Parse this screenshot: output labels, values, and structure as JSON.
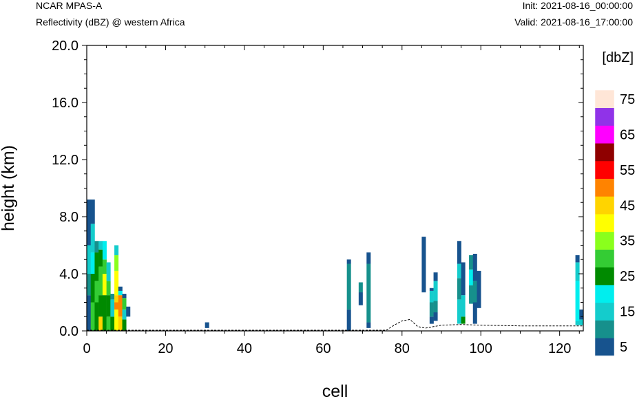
{
  "header": {
    "model": "NCAR MPAS-A",
    "field": "Reflectivity (dBZ) @ western Africa",
    "init": "Init: 2021-08-16_00:00:00",
    "valid": "Valid: 2021-08-16_17:00:00"
  },
  "chart_data": {
    "type": "heatmap",
    "title": "Reflectivity (dBZ) @ western Africa",
    "xlabel": "cell",
    "ylabel": "height (km)",
    "xlim": [
      0,
      126
    ],
    "ylim": [
      0,
      20
    ],
    "x_ticks": [
      "0",
      "20",
      "40",
      "60",
      "80",
      "100",
      "120"
    ],
    "y_ticks": [
      "0.0",
      "4.0",
      "8.0",
      "12.0",
      "16.0",
      "20.0"
    ],
    "colorbar": {
      "units": "[dbZ]",
      "levels": [
        5,
        10,
        15,
        20,
        25,
        30,
        35,
        40,
        45,
        50,
        55,
        60,
        65,
        70,
        75
      ],
      "labels": [
        "5",
        "15",
        "25",
        "35",
        "45",
        "55",
        "65",
        "75"
      ],
      "colors": [
        "#17538e",
        "#16908c",
        "#14cccc",
        "#00eeee",
        "#008a00",
        "#34cc34",
        "#8aff1c",
        "#ffff00",
        "#ffd400",
        "#ff8300",
        "#ff0000",
        "#8f0000",
        "#ff00ff",
        "#9033e8",
        "#ffe6d7"
      ]
    },
    "columns": [
      {
        "x": 0.5,
        "cells": [
          [
            0,
            2.5,
            0
          ],
          [
            2.5,
            4,
            1
          ],
          [
            4,
            6,
            2
          ],
          [
            6,
            9.2,
            0
          ]
        ]
      },
      {
        "x": 1.5,
        "cells": [
          [
            0,
            2,
            5
          ],
          [
            2,
            4,
            4
          ],
          [
            4,
            5.5,
            3
          ],
          [
            5.5,
            7.5,
            2
          ],
          [
            7.5,
            9.2,
            0
          ]
        ]
      },
      {
        "x": 2.5,
        "cells": [
          [
            0,
            2,
            4
          ],
          [
            2,
            3.5,
            5
          ],
          [
            3.5,
            5.5,
            4
          ],
          [
            5.5,
            6.3,
            1
          ]
        ]
      },
      {
        "x": 3.5,
        "cells": [
          [
            0,
            1,
            8
          ],
          [
            1,
            2.5,
            4
          ],
          [
            2.5,
            4.5,
            5
          ],
          [
            4.5,
            5.7,
            4
          ],
          [
            5.7,
            6.3,
            2
          ]
        ]
      },
      {
        "x": 4.5,
        "cells": [
          [
            0,
            2.5,
            4
          ],
          [
            2.5,
            4,
            7
          ],
          [
            4,
            5,
            5
          ],
          [
            5,
            6.3,
            3
          ]
        ]
      },
      {
        "x": 5.5,
        "cells": [
          [
            0,
            1,
            5
          ],
          [
            1,
            2.5,
            4
          ],
          [
            2.5,
            3.5,
            5
          ],
          [
            3.5,
            4.8,
            2
          ]
        ]
      },
      {
        "x": 6.5,
        "cells": [
          [
            0,
            1,
            4
          ],
          [
            1,
            2.2,
            2
          ],
          [
            2.2,
            2.6,
            1
          ]
        ]
      },
      {
        "x": 7.5,
        "cells": [
          [
            0,
            1.5,
            7
          ],
          [
            1.5,
            2,
            9
          ],
          [
            2,
            2.5,
            8
          ],
          [
            2.5,
            4.2,
            7
          ],
          [
            4.2,
            5.3,
            6
          ],
          [
            5.3,
            6,
            2
          ]
        ]
      },
      {
        "x": 8.5,
        "cells": [
          [
            0,
            1,
            8
          ],
          [
            1,
            2.5,
            9
          ],
          [
            2.5,
            2.8,
            3
          ],
          [
            2.8,
            3.1,
            0
          ]
        ]
      },
      {
        "x": 9.5,
        "cells": [
          [
            0,
            0.8,
            4
          ],
          [
            0.8,
            1.5,
            2
          ],
          [
            1.5,
            2.3,
            5
          ],
          [
            2.3,
            2.6,
            0
          ]
        ]
      },
      {
        "x": 10.5,
        "cells": [
          [
            1,
            1.7,
            0
          ]
        ]
      },
      {
        "x": 30.5,
        "cells": [
          [
            0.2,
            0.6,
            0
          ]
        ]
      },
      {
        "x": 66.5,
        "cells": [
          [
            0,
            1.5,
            0
          ],
          [
            1.5,
            4.7,
            1
          ],
          [
            4.7,
            5,
            0
          ]
        ]
      },
      {
        "x": 69.5,
        "cells": [
          [
            1.8,
            2.7,
            0
          ],
          [
            2.7,
            3.4,
            1
          ]
        ]
      },
      {
        "x": 71.5,
        "cells": [
          [
            0.2,
            0.6,
            0
          ],
          [
            0.6,
            4.7,
            1
          ],
          [
            4.7,
            5.5,
            0
          ]
        ]
      },
      {
        "x": 85.5,
        "cells": [
          [
            2.7,
            6.6,
            0
          ]
        ]
      },
      {
        "x": 87.5,
        "cells": [
          [
            0.5,
            1,
            0
          ],
          [
            1,
            2,
            1
          ],
          [
            2,
            2.8,
            2
          ],
          [
            2.8,
            3,
            0
          ]
        ]
      },
      {
        "x": 88.5,
        "cells": [
          [
            0.7,
            1.3,
            0
          ],
          [
            1.3,
            2.1,
            1
          ],
          [
            2.1,
            3.5,
            2
          ],
          [
            3.5,
            4.1,
            0
          ]
        ]
      },
      {
        "x": 94.5,
        "cells": [
          [
            0.5,
            2.2,
            2
          ],
          [
            2.2,
            3.7,
            1
          ],
          [
            3.7,
            4.7,
            2
          ],
          [
            4.7,
            6.3,
            0
          ]
        ]
      },
      {
        "x": 95.5,
        "cells": [
          [
            0.5,
            1,
            4
          ],
          [
            1,
            2.5,
            2
          ],
          [
            2.5,
            4.8,
            0
          ]
        ]
      },
      {
        "x": 97.5,
        "cells": [
          [
            1.9,
            3.2,
            1
          ],
          [
            3.2,
            4.3,
            3
          ],
          [
            4.3,
            5.3,
            1
          ]
        ]
      },
      {
        "x": 98.5,
        "cells": [
          [
            0.5,
            2,
            0
          ],
          [
            2,
            3.5,
            1
          ],
          [
            3.5,
            5.4,
            0
          ]
        ]
      },
      {
        "x": 99.5,
        "cells": [
          [
            1.6,
            4.2,
            0
          ]
        ]
      },
      {
        "x": 124.5,
        "cells": [
          [
            0.4,
            0.7,
            2
          ],
          [
            0.7,
            3.5,
            3
          ],
          [
            3.5,
            4.8,
            2
          ],
          [
            4.8,
            5.3,
            0
          ]
        ]
      },
      {
        "x": 125.5,
        "cells": [
          [
            0.4,
            0.8,
            2
          ],
          [
            0.8,
            1.5,
            0
          ]
        ]
      }
    ],
    "terrain": [
      [
        0,
        0.05
      ],
      [
        76,
        0.05
      ],
      [
        78,
        0.4
      ],
      [
        80,
        0.7
      ],
      [
        82,
        0.8
      ],
      [
        84,
        0.3
      ],
      [
        86,
        0.2
      ],
      [
        88,
        0.3
      ],
      [
        90,
        0.4
      ],
      [
        95,
        0.45
      ],
      [
        100,
        0.4
      ],
      [
        110,
        0.35
      ],
      [
        120,
        0.35
      ],
      [
        126,
        0.35
      ]
    ]
  }
}
